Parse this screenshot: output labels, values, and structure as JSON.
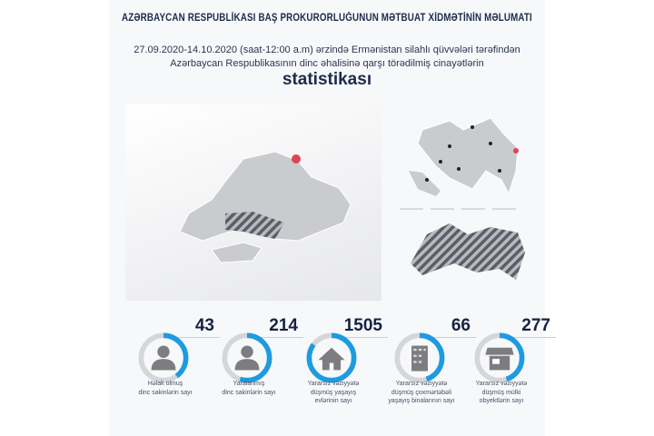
{
  "header": {
    "title": "AZƏRBAYCAN RESPUBLİKASI BAŞ PROKURORLUĞUNUN MƏTBUAT XİDMƏTİNİN MƏLUMATI",
    "subtitle_line1": "27.09.2020-14.10.2020 (saat-12:00 a.m) ərzində Ermənistan silahlı qüvvələri tərəfindən",
    "subtitle_line2": "Azərbaycan Respublikasının dinc əhalisinə qarşı törədilmiş cinayətlərin",
    "headline": "statistikası"
  },
  "colors": {
    "accent": "#1e9be0",
    "ring": "#d5d6da",
    "icon": "#7d7d80",
    "map": "#c9cbcf",
    "marker": "#e0454f"
  },
  "stats": [
    {
      "value": "43",
      "label_lines": [
        "Həlak olmuş",
        "dinc sakinlərin sayı"
      ],
      "icon": "person-icon",
      "ring_fill": 0.4
    },
    {
      "value": "214",
      "label_lines": [
        "Yaralanmış",
        "dinc sakinlərin sayı"
      ],
      "icon": "person-icon",
      "ring_fill": 0.55
    },
    {
      "value": "1505",
      "label_lines": [
        "Yararsız vəziyyətə",
        "düşmüş yaşayış",
        "evlərinin sayı"
      ],
      "icon": "house-icon",
      "ring_fill": 0.85
    },
    {
      "value": "66",
      "label_lines": [
        "Yararsız vəziyyətə",
        "düşmüş çoxmərtəbəli",
        "yaşayış binalarının sayı"
      ],
      "icon": "building-icon",
      "ring_fill": 0.45
    },
    {
      "value": "277",
      "label_lines": [
        "Yararsız vəziyyətə",
        "düşmüş mülki",
        "obyektlərin sayı"
      ],
      "icon": "shop-icon",
      "ring_fill": 0.45
    }
  ]
}
